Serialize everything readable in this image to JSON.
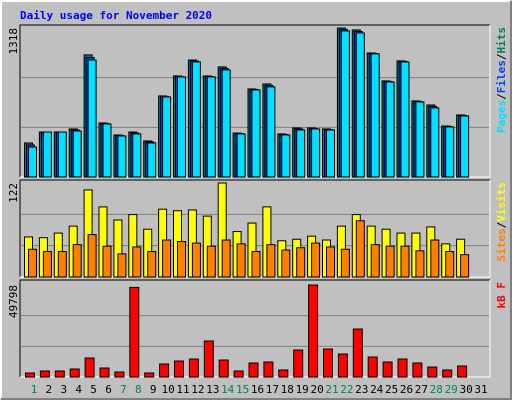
{
  "title": "Daily usage for November 2020",
  "legend_separator": "/",
  "category_colors": [
    "#008060",
    "#000000",
    "#000000",
    "#000000",
    "#000000",
    "#000000",
    "#008060",
    "#008060",
    "#000000",
    "#000000",
    "#000000",
    "#000000",
    "#000000",
    "#008060",
    "#008060",
    "#000000",
    "#000000",
    "#000000",
    "#000000",
    "#000000",
    "#008060",
    "#008060",
    "#000000",
    "#000000",
    "#000000",
    "#000000",
    "#000000",
    "#008060",
    "#008060",
    "#000000",
    "#000000"
  ],
  "chart_data": [
    {
      "type": "bar",
      "categories": [
        "1",
        "2",
        "3",
        "4",
        "5",
        "6",
        "7",
        "8",
        "9",
        "10",
        "11",
        "12",
        "13",
        "14",
        "15",
        "16",
        "17",
        "18",
        "19",
        "20",
        "21",
        "22",
        "23",
        "24",
        "25",
        "26",
        "27",
        "28",
        "29",
        "30",
        "31"
      ],
      "series": [
        {
          "name": "Hits",
          "color": "#00805c",
          "values": [
            301,
            398,
            398,
            425,
            1080,
            478,
            372,
            398,
            319,
            717,
            894,
            1035,
            894,
            974,
            389,
            779,
            823,
            381,
            434,
            434,
            425,
            1318,
            1301,
            1097,
            850,
            1027,
            673,
            637,
            451,
            549,
            0
          ]
        },
        {
          "name": "Files",
          "color": "#0040ff",
          "values": [
            283,
            398,
            398,
            416,
            1057,
            473,
            367,
            389,
            310,
            712,
            889,
            1026,
            889,
            960,
            385,
            774,
            810,
            376,
            425,
            429,
            420,
            1305,
            1287,
            1093,
            845,
            1022,
            668,
            624,
            447,
            544,
            0
          ]
        },
        {
          "name": "Pages",
          "color": "#00e0ff",
          "values": [
            265,
            398,
            398,
            407,
            1035,
            469,
            363,
            381,
            301,
            708,
            885,
            1018,
            885,
            947,
            381,
            770,
            797,
            372,
            416,
            425,
            416,
            1292,
            1274,
            1089,
            841,
            1018,
            664,
            611,
            443,
            540,
            0
          ]
        }
      ],
      "ylim": [
        0,
        1318
      ],
      "yticks": [
        1318
      ]
    },
    {
      "type": "bar",
      "categories": [
        "1",
        "2",
        "3",
        "4",
        "5",
        "6",
        "7",
        "8",
        "9",
        "10",
        "11",
        "12",
        "13",
        "14",
        "15",
        "16",
        "17",
        "18",
        "19",
        "20",
        "21",
        "22",
        "23",
        "24",
        "25",
        "26",
        "27",
        "28",
        "29",
        "30",
        "31"
      ],
      "series": [
        {
          "name": "Visits",
          "color": "#ffff00",
          "values": [
            52,
            51,
            57,
            66,
            113,
            91,
            74,
            81,
            62,
            88,
            86,
            87,
            79,
            122,
            59,
            70,
            91,
            47,
            49,
            53,
            48,
            66,
            81,
            66,
            62,
            57,
            57,
            65,
            43,
            49,
            0
          ]
        },
        {
          "name": "Sites",
          "color": "#ff8000",
          "values": [
            36,
            33,
            33,
            42,
            55,
            40,
            30,
            39,
            33,
            48,
            46,
            44,
            40,
            48,
            43,
            33,
            42,
            35,
            38,
            44,
            39,
            36,
            73,
            42,
            40,
            40,
            34,
            48,
            33,
            29,
            0
          ]
        }
      ],
      "ylim": [
        0,
        122
      ],
      "yticks": [
        122
      ]
    },
    {
      "type": "bar",
      "categories": [
        "1",
        "2",
        "3",
        "4",
        "5",
        "6",
        "7",
        "8",
        "9",
        "10",
        "11",
        "12",
        "13",
        "14",
        "15",
        "16",
        "17",
        "18",
        "19",
        "20",
        "21",
        "22",
        "23",
        "24",
        "25",
        "26",
        "27",
        "28",
        "29",
        "30",
        "31"
      ],
      "series": [
        {
          "name": "kB F",
          "color": "#ff0000",
          "values": [
            2164,
            3246,
            3246,
            4328,
            10279,
            4869,
            2705,
            48500,
            2164,
            7033,
            8656,
            9738,
            19476,
            9197,
            3246,
            7574,
            8115,
            3787,
            14607,
            49798,
            15148,
            12443,
            25968,
            10820,
            8115,
            9738,
            7574,
            5410,
            3787,
            5951,
            0
          ]
        }
      ],
      "ylim": [
        0,
        49798
      ],
      "yticks": [
        49798
      ]
    }
  ]
}
